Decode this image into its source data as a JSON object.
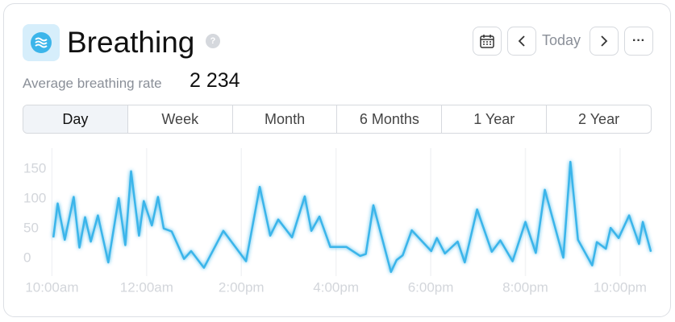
{
  "header": {
    "title": "Breathing",
    "help": "?",
    "today": "Today",
    "more": "···",
    "metric_label": "Average breathing rate",
    "metric_value": "2 234"
  },
  "tabs": [
    "Day",
    "Week",
    "Month",
    "6 Months",
    "1 Year",
    "2 Year"
  ],
  "selected_tab": 0,
  "chart_data": {
    "type": "line",
    "color": "#3bb5ea",
    "grid": true,
    "xlim": [
      -0.45,
      12.7
    ],
    "ylim": [
      -30,
      185
    ],
    "yticks": [
      0,
      50,
      100,
      150
    ],
    "xticks": [
      {
        "value": 0,
        "label": "10:00am"
      },
      {
        "value": 2,
        "label": "12:00am"
      },
      {
        "value": 4,
        "label": "2:00pm"
      },
      {
        "value": 6,
        "label": "4:00pm"
      },
      {
        "value": 8,
        "label": "6:00pm"
      },
      {
        "value": 10,
        "label": "8:00pm"
      },
      {
        "value": 12,
        "label": "10:00pm"
      }
    ],
    "x": [
      0.03,
      0.12,
      0.27,
      0.46,
      0.58,
      0.7,
      0.82,
      0.97,
      1.19,
      1.41,
      1.55,
      1.67,
      1.84,
      1.94,
      2.11,
      2.24,
      2.36,
      2.53,
      2.79,
      2.94,
      3.21,
      3.62,
      4.1,
      4.39,
      4.61,
      4.78,
      5.07,
      5.34,
      5.48,
      5.65,
      5.88,
      6.22,
      6.51,
      6.63,
      6.79,
      7.16,
      7.28,
      7.41,
      7.6,
      8.01,
      8.13,
      8.3,
      8.57,
      8.72,
      8.98,
      9.29,
      9.47,
      9.73,
      10.0,
      10.22,
      10.41,
      10.8,
      10.95,
      11.11,
      11.41,
      11.51,
      11.7,
      11.8,
      11.97,
      12.19,
      12.4,
      12.48,
      12.65
    ],
    "values": [
      35,
      92,
      31,
      103,
      18,
      69,
      28,
      72,
      -7,
      101,
      22,
      146,
      38,
      96,
      55,
      103,
      50,
      45,
      -1,
      12,
      -16,
      46,
      -5,
      120,
      38,
      65,
      35,
      104,
      46,
      70,
      19,
      19,
      4,
      7,
      89,
      -23,
      -3,
      5,
      47,
      12,
      34,
      8,
      28,
      -7,
      82,
      11,
      30,
      -5,
      61,
      9,
      115,
      1,
      162,
      31,
      -12,
      27,
      16,
      51,
      34,
      72,
      24,
      61,
      11
    ]
  }
}
